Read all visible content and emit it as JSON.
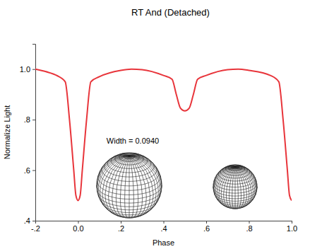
{
  "chart_data": {
    "type": "line",
    "title": "RT And (Detached)",
    "x_label": "Phase",
    "y_label": "Normalize Light",
    "annotation": "Width = 0.0940",
    "color": "#e8353b",
    "x": [
      -0.2,
      -0.15,
      -0.1,
      -0.06,
      -0.04,
      -0.02,
      -0.01,
      0.0,
      0.01,
      0.02,
      0.04,
      0.06,
      0.1,
      0.2,
      0.25,
      0.3,
      0.4,
      0.44,
      0.46,
      0.48,
      0.5,
      0.52,
      0.54,
      0.56,
      0.6,
      0.7,
      0.75,
      0.8,
      0.9,
      0.94,
      0.96,
      0.98,
      0.99,
      1.0
    ],
    "values": [
      1.0,
      0.99,
      0.975,
      0.95,
      0.8,
      0.6,
      0.5,
      0.48,
      0.5,
      0.6,
      0.8,
      0.95,
      0.97,
      0.995,
      1.0,
      0.998,
      0.975,
      0.96,
      0.9,
      0.845,
      0.835,
      0.845,
      0.9,
      0.96,
      0.975,
      0.998,
      1.0,
      0.995,
      0.975,
      0.95,
      0.8,
      0.6,
      0.5,
      0.48
    ],
    "xlim": [
      -0.2,
      1.0
    ],
    "ylim": [
      0.4,
      1.1
    ],
    "xticks": [
      {
        "value": -0.2,
        "label": "-.2"
      },
      {
        "value": 0.0,
        "label": "0.0"
      },
      {
        "value": 0.2,
        "label": ".2"
      },
      {
        "value": 0.4,
        "label": ".4"
      },
      {
        "value": 0.6,
        "label": ".6"
      },
      {
        "value": 0.8,
        "label": ".8"
      },
      {
        "value": 1.0,
        "label": "1.0"
      }
    ],
    "yticks": [
      {
        "value": 0.4,
        "label": ".4"
      },
      {
        "value": 0.6,
        "label": ".6"
      },
      {
        "value": 0.8,
        "label": ".8"
      },
      {
        "value": 1.0,
        "label": "1.0"
      }
    ],
    "grid": false
  }
}
